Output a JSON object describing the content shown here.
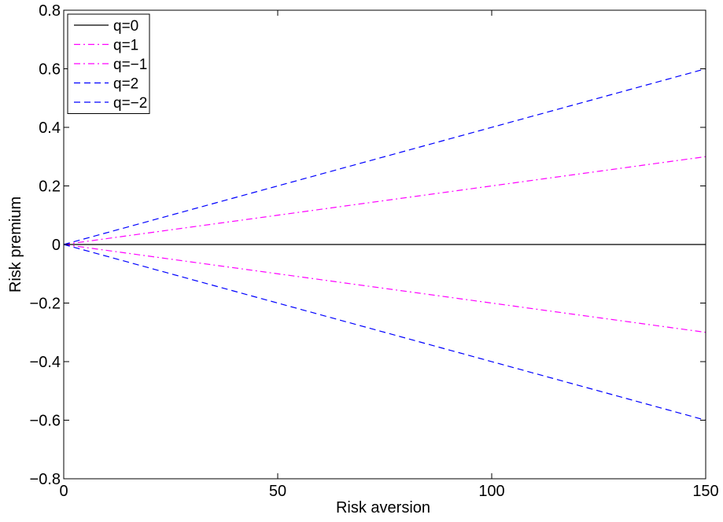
{
  "chart_data": {
    "type": "line",
    "title": "",
    "xlabel": "Risk aversion",
    "ylabel": "Risk premium",
    "xlim": [
      0,
      150
    ],
    "ylim": [
      -0.8,
      0.8
    ],
    "x_ticks": [
      0,
      50,
      100,
      150
    ],
    "x_tick_labels": [
      "0",
      "50",
      "100",
      "150"
    ],
    "y_ticks": [
      -0.8,
      -0.6,
      -0.4,
      -0.2,
      0,
      0.2,
      0.4,
      0.6,
      0.8
    ],
    "y_tick_labels": [
      "−0.8",
      "−0.6",
      "−0.4",
      "−0.2",
      "0",
      "0.2",
      "0.4",
      "0.6",
      "0.8"
    ],
    "grid": false,
    "legend_position": "top-left",
    "series": [
      {
        "name": "q=0",
        "color": "#000000",
        "dash": "solid",
        "x": [
          0,
          150
        ],
        "y": [
          0,
          0
        ]
      },
      {
        "name": "q=1",
        "color": "#ff00ff",
        "dash": "dash-dot",
        "x": [
          0,
          150
        ],
        "y": [
          0,
          0.3
        ]
      },
      {
        "name": "q=−1",
        "color": "#ff00ff",
        "dash": "dash-dot",
        "x": [
          0,
          150
        ],
        "y": [
          0,
          -0.3
        ]
      },
      {
        "name": "q=2",
        "color": "#0000ff",
        "dash": "dashed",
        "x": [
          0,
          150
        ],
        "y": [
          0,
          0.6
        ]
      },
      {
        "name": "q=−2",
        "color": "#0000ff",
        "dash": "dashed",
        "x": [
          0,
          150
        ],
        "y": [
          0,
          -0.6
        ]
      }
    ]
  }
}
